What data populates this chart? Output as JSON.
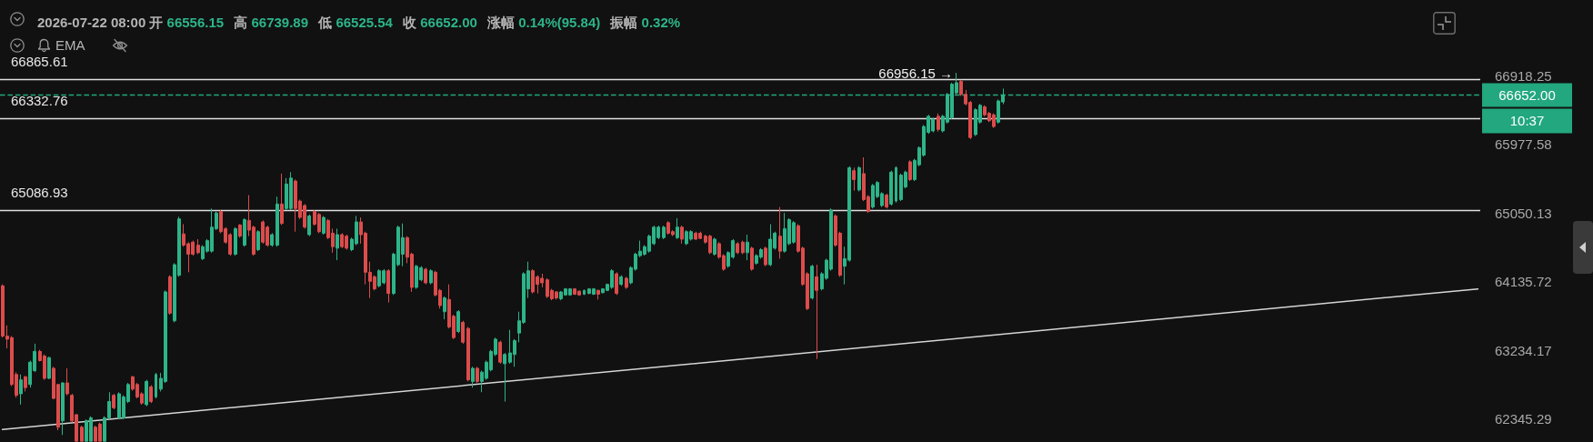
{
  "chart_data": {
    "type": "candlestick",
    "title": "2026-07-22 08:00 开 66556.15 高 66739.89 低 66525.54 收 66652.00 涨幅 0.14%(95.84) 振幅 0.32%",
    "categories": [
      null,
      null,
      null,
      null,
      null,
      null,
      null,
      null,
      null,
      null,
      null,
      null,
      null,
      null,
      null,
      null,
      null,
      null,
      null,
      null,
      null,
      null,
      null,
      null,
      null,
      null,
      null,
      null,
      null,
      null,
      null,
      null,
      null,
      null,
      null,
      null,
      null,
      null,
      null,
      null,
      null,
      null,
      null,
      null,
      null,
      null,
      null,
      null,
      null,
      null,
      null,
      null,
      null,
      null,
      null,
      null,
      null,
      null,
      null,
      null,
      null,
      null,
      null,
      null,
      null,
      null,
      null,
      null,
      null,
      null,
      null,
      null,
      null,
      null,
      null,
      null,
      null,
      null,
      null,
      null,
      null,
      null,
      null,
      null,
      null,
      null,
      null,
      null,
      null,
      null,
      null,
      null,
      null,
      null,
      null,
      null,
      null,
      null,
      null,
      null,
      null,
      null,
      null,
      null,
      null,
      null,
      null,
      null,
      null,
      null,
      null,
      null,
      null,
      null,
      null,
      null,
      null,
      null,
      null,
      null,
      null,
      null,
      null,
      null,
      null,
      null,
      null,
      null,
      null,
      null,
      null,
      null,
      null,
      null,
      null,
      null,
      null,
      null,
      null,
      null,
      null,
      null,
      null,
      null,
      null,
      null,
      null,
      null,
      null,
      null,
      null,
      null,
      null,
      null,
      null,
      null,
      null,
      null,
      null,
      null,
      null,
      null,
      null,
      null,
      null,
      null,
      null,
      null,
      null,
      null,
      null,
      null,
      null,
      null,
      null,
      null,
      null,
      null,
      null,
      null,
      null,
      null,
      null,
      null,
      null,
      null,
      null,
      null,
      null,
      null,
      null,
      null,
      null,
      null,
      null,
      null,
      null,
      null,
      null,
      null,
      null,
      null,
      null,
      null,
      null,
      null,
      null,
      null,
      null,
      null,
      null,
      null,
      null,
      null,
      null,
      null,
      null,
      null,
      null,
      null,
      null,
      null,
      null,
      null,
      null,
      null,
      null,
      null,
      null,
      null,
      null,
      null,
      null,
      null,
      null,
      null,
      null,
      null,
      null,
      null,
      null,
      null,
      null,
      null,
      null,
      null,
      null,
      null,
      null,
      null,
      null,
      null,
      null,
      null,
      null,
      null,
      null,
      null,
      null,
      null,
      null,
      null,
      null,
      null,
      null,
      null,
      null,
      null,
      null,
      null,
      null,
      null,
      null,
      null,
      null,
      null,
      null,
      null,
      null,
      null,
      null,
      null,
      null,
      null,
      null,
      null,
      null,
      null,
      null,
      null,
      null,
      null,
      null,
      null,
      null,
      null,
      null,
      null,
      null,
      null,
      null,
      null,
      null,
      null,
      null,
      null,
      null,
      null,
      null,
      null,
      null,
      null,
      null,
      null,
      null,
      null,
      null,
      null
    ],
    "series": [
      {
        "ohlc": [
          [
            64080,
            64100,
            63400,
            63420
          ],
          [
            63420,
            63560,
            63260,
            63380
          ],
          [
            63400,
            63420,
            62770,
            62790
          ],
          [
            62920,
            62950,
            62620,
            62650
          ],
          [
            62670,
            62920,
            62530,
            62850
          ],
          [
            62890,
            62900,
            62700,
            62750
          ],
          [
            62790,
            63100,
            62750,
            63080
          ],
          [
            62970,
            63320,
            62950,
            63220
          ],
          [
            63220,
            63240,
            63090,
            63100
          ],
          [
            63160,
            63180,
            62850,
            62870
          ],
          [
            62870,
            63150,
            62860,
            63140
          ],
          [
            63000,
            63020,
            62600,
            62610
          ],
          [
            62790,
            62800,
            62200,
            62240
          ],
          [
            62320,
            62820,
            62140,
            62810
          ],
          [
            62810,
            63000,
            62650,
            62670
          ],
          [
            62650,
            62670,
            62300,
            62320
          ],
          [
            62400,
            62410,
            62060,
            62060
          ],
          [
            62240,
            62260,
            62060,
            62060
          ],
          [
            62060,
            62340,
            62060,
            62320
          ],
          [
            62060,
            62380,
            62060,
            62360
          ],
          [
            62240,
            62260,
            62060,
            62060
          ],
          [
            62280,
            62300,
            62060,
            62060
          ],
          [
            62060,
            62380,
            62060,
            62360
          ],
          [
            62360,
            62690,
            62340,
            62570
          ],
          [
            62650,
            62670,
            62470,
            62490
          ],
          [
            62360,
            62690,
            62340,
            62670
          ],
          [
            62360,
            62650,
            62340,
            62630
          ],
          [
            62570,
            62810,
            62550,
            62790
          ],
          [
            62890,
            62900,
            62710,
            62730
          ],
          [
            62790,
            62810,
            62610,
            62630
          ],
          [
            62670,
            62690,
            62530,
            62550
          ],
          [
            62530,
            62850,
            62510,
            62830
          ],
          [
            62760,
            62780,
            62550,
            62570
          ],
          [
            62630,
            62940,
            62610,
            62920
          ],
          [
            62730,
            62940,
            62700,
            62870
          ],
          [
            62830,
            64020,
            62810,
            64000
          ],
          [
            64200,
            64220,
            63700,
            63720
          ],
          [
            63620,
            64380,
            63600,
            64360
          ],
          [
            64220,
            65000,
            64200,
            64970
          ],
          [
            64770,
            64900,
            64600,
            64620
          ],
          [
            64640,
            64660,
            64260,
            64500
          ],
          [
            64660,
            64680,
            64480,
            64500
          ],
          [
            64620,
            64700,
            64500,
            64520
          ],
          [
            64440,
            64620,
            64420,
            64600
          ],
          [
            64540,
            64700,
            64520,
            64680
          ],
          [
            64540,
            65110,
            64520,
            64860
          ],
          [
            64840,
            65070,
            64820,
            65050
          ],
          [
            65070,
            65090,
            64780,
            64800
          ],
          [
            64840,
            64860,
            64640,
            64660
          ],
          [
            64760,
            64780,
            64480,
            64500
          ],
          [
            64500,
            64860,
            64480,
            64840
          ],
          [
            64890,
            64900,
            64720,
            64740
          ],
          [
            64620,
            64980,
            64600,
            64960
          ],
          [
            64950,
            65290,
            64740,
            64820
          ],
          [
            64860,
            64880,
            64480,
            64500
          ],
          [
            64560,
            64820,
            64540,
            64800
          ],
          [
            64930,
            64950,
            64640,
            64660
          ],
          [
            64860,
            64880,
            64600,
            64620
          ],
          [
            64620,
            64780,
            64600,
            64760
          ],
          [
            64620,
            65270,
            64600,
            65170
          ],
          [
            65170,
            65580,
            64890,
            64910
          ],
          [
            65110,
            65520,
            65090,
            65440
          ],
          [
            65110,
            65600,
            65090,
            65520
          ],
          [
            65480,
            65500,
            64800,
            65110
          ],
          [
            65210,
            65230,
            64970,
            64990
          ],
          [
            65150,
            65170,
            64840,
            64860
          ],
          [
            64760,
            65030,
            64740,
            65010
          ],
          [
            65070,
            65090,
            64880,
            64900
          ],
          [
            65030,
            65050,
            64780,
            64800
          ],
          [
            64780,
            65010,
            64760,
            64990
          ],
          [
            64950,
            64970,
            64700,
            64720
          ],
          [
            64780,
            64840,
            64520,
            64600
          ],
          [
            64580,
            64840,
            64420,
            64760
          ],
          [
            64760,
            64780,
            64580,
            64600
          ],
          [
            64740,
            64760,
            64560,
            64580
          ],
          [
            64560,
            64720,
            64540,
            64700
          ],
          [
            64640,
            65010,
            64620,
            64930
          ],
          [
            64930,
            64990,
            64640,
            64760
          ],
          [
            64780,
            64800,
            64100,
            64260
          ],
          [
            64260,
            64400,
            63920,
            64140
          ],
          [
            64200,
            64220,
            64020,
            64040
          ],
          [
            64080,
            64300,
            64060,
            64280
          ],
          [
            64120,
            64300,
            64100,
            64280
          ],
          [
            64280,
            64300,
            63860,
            63980
          ],
          [
            63980,
            64520,
            63960,
            64500
          ],
          [
            64360,
            64880,
            64340,
            64860
          ],
          [
            64500,
            64910,
            64340,
            64720
          ],
          [
            64720,
            64740,
            64380,
            64460
          ],
          [
            64500,
            64520,
            64000,
            64060
          ],
          [
            64060,
            64360,
            64040,
            64340
          ],
          [
            64160,
            64340,
            64140,
            64320
          ],
          [
            64300,
            64320,
            64100,
            64120
          ],
          [
            64120,
            64300,
            64100,
            64280
          ],
          [
            64260,
            64280,
            63940,
            63960
          ],
          [
            64020,
            64040,
            63780,
            63820
          ],
          [
            63740,
            63940,
            63640,
            63920
          ],
          [
            63900,
            64100,
            63520,
            63540
          ],
          [
            63680,
            63700,
            63380,
            63400
          ],
          [
            63480,
            63760,
            63460,
            63740
          ],
          [
            63600,
            63620,
            63320,
            63340
          ],
          [
            63520,
            63540,
            62830,
            62850
          ],
          [
            62830,
            63020,
            62750,
            63000
          ],
          [
            63000,
            63020,
            62810,
            62830
          ],
          [
            62830,
            62970,
            62690,
            62950
          ],
          [
            62870,
            63100,
            62850,
            63080
          ],
          [
            62980,
            63240,
            62960,
            63220
          ],
          [
            63180,
            63400,
            63160,
            63380
          ],
          [
            63340,
            63360,
            63060,
            63080
          ],
          [
            63060,
            63200,
            62570,
            63180
          ],
          [
            63080,
            63500,
            63060,
            63200
          ],
          [
            63180,
            63380,
            63020,
            63360
          ],
          [
            63460,
            63740,
            63340,
            63620
          ],
          [
            63600,
            64260,
            63580,
            64240
          ],
          [
            64040,
            64400,
            63920,
            64280
          ],
          [
            64280,
            64300,
            63980,
            64000
          ],
          [
            64200,
            64220,
            63980,
            64100
          ],
          [
            64180,
            64240,
            64060,
            64120
          ],
          [
            64160,
            64180,
            63920,
            63940
          ],
          [
            64020,
            64040,
            63890,
            63910
          ],
          [
            64000,
            64010,
            63900,
            63920
          ],
          [
            63910,
            64010,
            63890,
            64000
          ],
          [
            63960,
            64050,
            63950,
            64040
          ],
          [
            63960,
            64050,
            63950,
            64040
          ],
          [
            64040,
            64050,
            63960,
            63970
          ],
          [
            64010,
            64020,
            63950,
            63960
          ],
          [
            63970,
            64030,
            63960,
            64020
          ],
          [
            63980,
            64050,
            63970,
            64040
          ],
          [
            63970,
            64050,
            63960,
            64040
          ],
          [
            64020,
            64030,
            63900,
            63970
          ],
          [
            63990,
            64050,
            63980,
            64040
          ],
          [
            64020,
            64110,
            64010,
            64100
          ],
          [
            64060,
            64300,
            64040,
            64280
          ],
          [
            64240,
            64260,
            63960,
            63980
          ],
          [
            64100,
            64220,
            64080,
            64200
          ],
          [
            64180,
            64200,
            64040,
            64060
          ],
          [
            64120,
            64340,
            64100,
            64320
          ],
          [
            64300,
            64520,
            64280,
            64500
          ],
          [
            64480,
            64680,
            64460,
            64540
          ],
          [
            64500,
            64620,
            64480,
            64600
          ],
          [
            64540,
            64760,
            64520,
            64740
          ],
          [
            64640,
            64880,
            64620,
            64860
          ],
          [
            64720,
            64880,
            64700,
            64860
          ],
          [
            64720,
            64880,
            64700,
            64860
          ],
          [
            64920,
            64940,
            64760,
            64780
          ],
          [
            64800,
            64820,
            64740,
            64760
          ],
          [
            64720,
            64980,
            64700,
            64860
          ],
          [
            64860,
            64880,
            64640,
            64700
          ],
          [
            64640,
            64820,
            64620,
            64800
          ],
          [
            64700,
            64820,
            64680,
            64800
          ],
          [
            64780,
            64800,
            64690,
            64700
          ],
          [
            64780,
            64800,
            64700,
            64710
          ],
          [
            64740,
            64760,
            64640,
            64660
          ],
          [
            64740,
            64760,
            64500,
            64520
          ],
          [
            64500,
            64720,
            64480,
            64700
          ],
          [
            64640,
            64660,
            64440,
            64460
          ],
          [
            64480,
            64500,
            64280,
            64300
          ],
          [
            64340,
            64540,
            64320,
            64520
          ],
          [
            64460,
            64700,
            64440,
            64680
          ],
          [
            64640,
            64660,
            64500,
            64520
          ],
          [
            64660,
            64680,
            64500,
            64520
          ],
          [
            64520,
            64760,
            64420,
            64660
          ],
          [
            64580,
            64600,
            64280,
            64300
          ],
          [
            64380,
            64500,
            64360,
            64480
          ],
          [
            64460,
            64580,
            64440,
            64560
          ],
          [
            64580,
            64600,
            64340,
            64360
          ],
          [
            64360,
            64900,
            64340,
            64700
          ],
          [
            64580,
            64800,
            64560,
            64780
          ],
          [
            64740,
            65130,
            64440,
            64540
          ],
          [
            64540,
            65050,
            64520,
            64840
          ],
          [
            64640,
            64980,
            64620,
            64960
          ],
          [
            64660,
            64940,
            64640,
            64920
          ],
          [
            64880,
            64900,
            64520,
            64540
          ],
          [
            64580,
            64600,
            64080,
            64100
          ],
          [
            64240,
            64260,
            63760,
            63780
          ],
          [
            63920,
            64360,
            63900,
            64340
          ],
          [
            64200,
            64360,
            63120,
            64020
          ],
          [
            64040,
            64260,
            64020,
            64240
          ],
          [
            64180,
            64440,
            64160,
            64420
          ],
          [
            64300,
            65110,
            64280,
            65090
          ],
          [
            65010,
            65030,
            64600,
            64620
          ],
          [
            64780,
            64800,
            64200,
            64220
          ],
          [
            64340,
            64600,
            64100,
            64440
          ],
          [
            64420,
            65680,
            64400,
            65660
          ],
          [
            65620,
            65660,
            65350,
            65500
          ],
          [
            65360,
            65680,
            65340,
            65660
          ],
          [
            65580,
            65800,
            65210,
            65230
          ],
          [
            65270,
            65290,
            65050,
            65070
          ],
          [
            65130,
            65440,
            65110,
            65420
          ],
          [
            65270,
            65480,
            65250,
            65460
          ],
          [
            65150,
            65330,
            65130,
            65310
          ],
          [
            65290,
            65310,
            65110,
            65130
          ],
          [
            65170,
            65620,
            65150,
            65600
          ],
          [
            65210,
            65680,
            65190,
            65660
          ],
          [
            65230,
            65580,
            65210,
            65560
          ],
          [
            65400,
            65620,
            65380,
            65600
          ],
          [
            65740,
            65760,
            65480,
            65500
          ],
          [
            65500,
            65780,
            65480,
            65760
          ],
          [
            65700,
            65950,
            65680,
            65930
          ],
          [
            65830,
            66240,
            65810,
            66220
          ],
          [
            66140,
            66380,
            66120,
            66360
          ],
          [
            66160,
            66340,
            66140,
            66320
          ],
          [
            66360,
            66400,
            66150,
            66180
          ],
          [
            66160,
            66380,
            66140,
            66360
          ],
          [
            66280,
            66680,
            66260,
            66660
          ],
          [
            66340,
            66820,
            66320,
            66800
          ],
          [
            66680,
            66956.15,
            66660,
            66820
          ],
          [
            66840,
            66860,
            66640,
            66660
          ],
          [
            66660,
            66720,
            66510,
            66530
          ],
          [
            66550,
            66570,
            66050,
            66070
          ],
          [
            66110,
            66470,
            66090,
            66450
          ],
          [
            66280,
            66530,
            66260,
            66510
          ],
          [
            66490,
            66510,
            66360,
            66380
          ],
          [
            66400,
            66420,
            66280,
            66300
          ],
          [
            66380,
            66400,
            66200,
            66220
          ],
          [
            66280,
            66590,
            66260,
            66570
          ],
          [
            66556.15,
            66739.89,
            66525.54,
            66652
          ],
          null,
          null,
          null,
          null,
          null,
          null,
          null,
          null,
          null,
          null,
          null,
          null,
          null,
          null,
          null,
          null,
          null,
          null,
          null,
          null,
          null,
          null,
          null,
          null,
          null,
          null,
          null,
          null,
          null,
          null,
          null,
          null,
          null,
          null,
          null,
          null,
          null,
          null,
          null,
          null,
          null,
          null,
          null,
          null,
          null,
          null,
          null,
          null,
          null,
          null,
          null,
          null,
          null,
          null,
          null,
          null,
          null,
          null,
          null,
          null,
          null,
          null,
          null,
          null,
          null,
          null,
          null,
          null,
          null,
          null,
          null,
          null,
          null,
          null,
          null,
          null,
          null,
          null,
          null,
          null,
          null,
          null,
          null,
          null,
          null,
          null,
          null,
          null,
          null,
          null,
          null,
          null,
          null,
          null,
          null,
          null,
          null,
          null,
          null,
          null,
          null,
          null
        ],
        "colors": [
          "#dc4c4c",
          "#dc4c4c",
          "#dc4c4c",
          "#dc4c4c",
          "#2db489",
          "#dc4c4c",
          "#2db489",
          "#2db489",
          "#dc4c4c",
          "#dc4c4c",
          "#2db489",
          "#dc4c4c",
          "#dc4c4c",
          "#2db489",
          "#dc4c4c",
          "#dc4c4c",
          "#dc4c4c",
          "#dc4c4c",
          "#2db489",
          "#2db489",
          "#dc4c4c",
          "#dc4c4c",
          "#2db489",
          "#2db489",
          "#dc4c4c",
          "#2db489",
          "#2db489",
          "#2db489",
          "#dc4c4c",
          "#dc4c4c",
          "#dc4c4c",
          "#2db489",
          "#dc4c4c",
          "#2db489",
          "#2db489",
          "#2db489",
          "#dc4c4c",
          "#2db489",
          "#2db489",
          "#dc4c4c",
          "#dc4c4c",
          "#dc4c4c",
          "#dc4c4c",
          "#2db489",
          "#2db489",
          "#2db489",
          "#2db489",
          "#dc4c4c",
          "#dc4c4c",
          "#dc4c4c",
          "#2db489",
          "#dc4c4c",
          "#2db489",
          "#dc4c4c",
          "#dc4c4c",
          "#2db489",
          "#dc4c4c",
          "#dc4c4c",
          "#2db489",
          "#2db489",
          "#dc4c4c",
          "#2db489",
          "#2db489",
          "#dc4c4c",
          "#dc4c4c",
          "#dc4c4c",
          "#2db489",
          "#dc4c4c",
          "#dc4c4c",
          "#2db489",
          "#dc4c4c",
          "#dc4c4c",
          "#2db489",
          "#dc4c4c",
          "#dc4c4c",
          "#2db489",
          "#2db489",
          "#dc4c4c",
          "#dc4c4c",
          "#dc4c4c",
          "#dc4c4c",
          "#2db489",
          "#2db489",
          "#dc4c4c",
          "#2db489",
          "#2db489",
          "#2db489",
          "#dc4c4c",
          "#dc4c4c",
          "#2db489",
          "#2db489",
          "#dc4c4c",
          "#2db489",
          "#dc4c4c",
          "#dc4c4c",
          "#2db489",
          "#dc4c4c",
          "#dc4c4c",
          "#2db489",
          "#dc4c4c",
          "#dc4c4c",
          "#2db489",
          "#dc4c4c",
          "#2db489",
          "#2db489",
          "#2db489",
          "#2db489",
          "#dc4c4c",
          "#2db489",
          "#2db489",
          "#2db489",
          "#2db489",
          "#2db489",
          "#2db489",
          "#dc4c4c",
          "#dc4c4c",
          "#dc4c4c",
          "#dc4c4c",
          "#dc4c4c",
          "#dc4c4c",
          "#2db489",
          "#2db489",
          "#2db489",
          "#dc4c4c",
          "#dc4c4c",
          "#2db489",
          "#2db489",
          "#2db489",
          "#dc4c4c",
          "#2db489",
          "#2db489",
          "#2db489",
          "#dc4c4c",
          "#2db489",
          "#dc4c4c",
          "#2db489",
          "#2db489",
          "#2db489",
          "#2db489",
          "#2db489",
          "#2db489",
          "#2db489",
          "#2db489",
          "#dc4c4c",
          "#dc4c4c",
          "#2db489",
          "#dc4c4c",
          "#2db489",
          "#2db489",
          "#dc4c4c",
          "#dc4c4c",
          "#dc4c4c",
          "#dc4c4c",
          "#2db489",
          "#dc4c4c",
          "#dc4c4c",
          "#2db489",
          "#2db489",
          "#dc4c4c",
          "#dc4c4c",
          "#2db489",
          "#dc4c4c",
          "#2db489",
          "#2db489",
          "#dc4c4c",
          "#2db489",
          "#2db489",
          "#dc4c4c",
          "#2db489",
          "#2db489",
          "#2db489",
          "#dc4c4c",
          "#dc4c4c",
          "#dc4c4c",
          "#2db489",
          "#dc4c4c",
          "#2db489",
          "#2db489",
          "#2db489",
          "#dc4c4c",
          "#dc4c4c",
          "#2db489",
          "#2db489",
          "#dc4c4c",
          "#2db489",
          "#dc4c4c",
          "#dc4c4c",
          "#2db489",
          "#2db489",
          "#2db489",
          "#dc4c4c",
          "#2db489",
          "#2db489",
          "#2db489",
          "#2db489",
          "#dc4c4c",
          "#2db489",
          "#2db489",
          "#2db489",
          "#2db489",
          "#2db489",
          "#dc4c4c",
          "#2db489",
          "#2db489",
          "#2db489",
          "#2db489",
          "#dc4c4c",
          "#dc4c4c",
          "#dc4c4c",
          "#2db489",
          "#2db489",
          "#dc4c4c",
          "#dc4c4c",
          "#dc4c4c",
          "#2db489",
          "#2db489",
          null,
          null,
          null,
          null,
          null,
          null,
          null,
          null,
          null,
          null,
          null,
          null,
          null,
          null,
          null,
          null,
          null,
          null,
          null,
          null,
          null,
          null,
          null,
          null,
          null,
          null,
          null,
          null,
          null,
          null,
          null,
          null,
          null,
          null,
          null,
          null,
          null,
          null,
          null,
          null,
          null,
          null,
          null,
          null,
          null,
          null,
          null,
          null,
          null,
          null,
          null,
          null,
          null,
          null,
          null,
          null,
          null,
          null,
          null,
          null,
          null,
          null,
          null,
          null,
          null,
          null,
          null,
          null,
          null,
          null,
          null,
          null,
          null,
          null,
          null,
          null,
          null,
          null,
          null,
          null,
          null,
          null,
          null,
          null,
          null,
          null,
          null,
          null,
          null,
          null,
          null,
          null,
          null,
          null,
          null,
          null,
          null,
          null,
          null,
          null,
          null,
          null
        ]
      },
      {
        "type": "line",
        "color": "#d6d6d6",
        "values": [
          62210,
          null,
          null,
          null,
          null,
          null,
          null,
          null,
          null,
          null,
          null,
          null,
          null,
          null,
          null,
          null,
          null,
          null,
          null,
          null,
          null,
          null,
          null,
          null,
          null,
          null,
          null,
          null,
          null,
          null,
          null,
          null,
          null,
          null,
          null,
          null,
          null,
          null,
          null,
          null,
          null,
          null,
          null,
          null,
          null,
          null,
          null,
          null,
          null,
          null,
          null,
          null,
          null,
          null,
          null,
          null,
          null,
          null,
          null,
          null,
          null,
          null,
          null,
          null,
          null,
          null,
          null,
          null,
          null,
          null,
          null,
          null,
          null,
          null,
          null,
          null,
          null,
          null,
          null,
          null,
          null,
          null,
          null,
          null,
          null,
          null,
          null,
          null,
          null,
          null,
          null,
          null,
          null,
          null,
          null,
          null,
          null,
          null,
          null,
          null,
          null,
          null,
          null,
          null,
          null,
          null,
          null,
          null,
          null,
          null,
          null,
          null,
          null,
          null,
          null,
          null,
          null,
          null,
          null,
          null,
          null,
          null,
          null,
          null,
          null,
          null,
          null,
          null,
          null,
          null,
          null,
          null,
          null,
          null,
          null,
          null,
          null,
          null,
          null,
          null,
          null,
          null,
          null,
          null,
          null,
          null,
          null,
          null,
          null,
          null,
          null,
          null,
          null,
          null,
          null,
          null,
          null,
          null,
          null,
          null,
          null,
          null,
          null,
          null,
          null,
          null,
          null,
          null,
          null,
          null,
          null,
          null,
          null,
          null,
          null,
          null,
          null,
          null,
          null,
          null,
          null,
          null,
          null,
          null,
          null,
          null,
          null,
          null,
          null,
          null,
          null,
          null,
          null,
          null,
          null,
          null,
          null,
          null,
          null,
          null,
          null,
          null,
          null,
          null,
          null,
          null,
          null,
          null,
          null,
          null,
          null,
          null,
          null,
          null,
          null,
          null,
          null,
          null,
          null,
          null,
          null,
          null,
          null,
          null,
          null,
          null,
          null,
          null,
          null,
          null,
          null,
          null,
          null,
          null,
          null,
          null,
          null,
          null,
          null,
          null,
          null,
          null,
          null,
          null,
          null,
          null,
          null,
          null,
          null,
          null,
          null,
          null,
          null,
          null,
          null,
          null,
          null,
          null,
          null,
          null,
          null,
          null,
          null,
          null,
          null,
          null,
          null,
          null,
          null,
          null,
          null,
          null,
          null,
          null,
          null,
          null,
          null,
          null,
          null,
          null,
          null,
          null,
          null,
          null,
          null,
          null,
          null,
          null,
          null,
          null,
          null,
          null,
          null,
          null,
          null,
          null,
          null,
          null,
          null,
          null,
          null,
          null,
          null,
          null,
          null,
          null,
          null,
          null,
          null,
          null,
          null,
          null,
          null,
          null,
          null,
          null,
          null,
          64040
        ]
      }
    ],
    "ylim": [
      62050,
      67970
    ],
    "yticks": [
      62345.29,
      63234.17,
      64135.72,
      65050.13,
      65977.58,
      66918.25
    ],
    "log": true,
    "tick_labels": "y",
    "ref_lines": [
      {
        "axis": "y",
        "value": 66865.61,
        "label": "66865.61",
        "color": "#e0e0e0"
      },
      {
        "axis": "y",
        "value": 66332.76,
        "label": "66332.76",
        "color": "#e0e0e0"
      },
      {
        "axis": "y",
        "value": 65086.93,
        "label": "65086.93",
        "color": "#e0e0e0"
      },
      {
        "axis": "y",
        "value": 66652,
        "label": "66652.00",
        "color": "#22a77e",
        "line_style": "dashed"
      }
    ],
    "annotations": [
      "EMA",
      "10:37",
      "66956.15 →"
    ]
  }
}
